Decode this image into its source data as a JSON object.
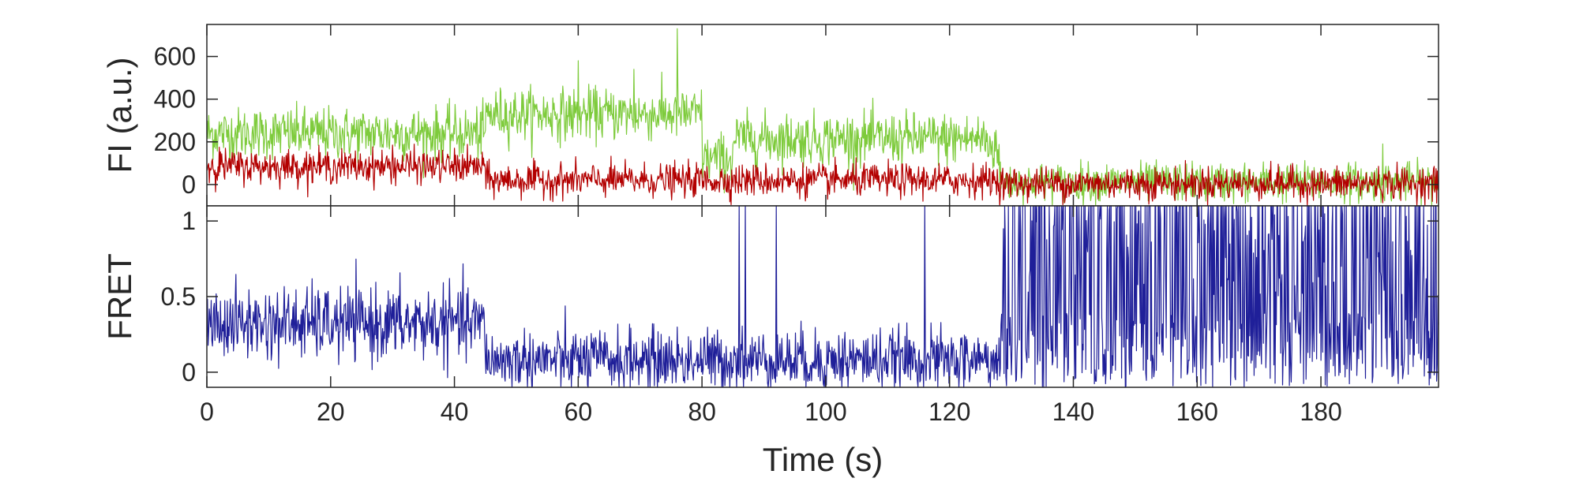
{
  "chart_data": [
    {
      "type": "line",
      "ylabel": "FI (a.u.)",
      "xlim": [
        0,
        199
      ],
      "ylim": [
        -100,
        750
      ],
      "yticks": [
        0,
        200,
        400,
        600
      ],
      "xticks_shown": false,
      "grid": false,
      "colors": {
        "donor": "#7ecb3c",
        "acceptor": "#b30000"
      },
      "series": [
        {
          "key": "donor",
          "segments": [
            {
              "x_range": [
                0,
                45
              ],
              "mean": 240
            },
            {
              "x_range": [
                45,
                80
              ],
              "mean": 330
            },
            {
              "x_range": [
                80,
                85
              ],
              "mean": 120
            },
            {
              "x_range": [
                85,
                126
              ],
              "mean": 215
            },
            {
              "x_range": [
                126,
                128
              ],
              "mean": 180
            },
            {
              "x_range": [
                128,
                199
              ],
              "mean": 10
            }
          ],
          "peaks": [
            {
              "x": 76,
              "y": 730
            },
            {
              "x": 60,
              "y": 580
            },
            {
              "x": 69,
              "y": 540
            },
            {
              "x": 190,
              "y": 190
            }
          ]
        },
        {
          "key": "acceptor",
          "segments": [
            {
              "x_range": [
                0,
                45
              ],
              "mean": 85
            },
            {
              "x_range": [
                45,
                128
              ],
              "mean": 20
            },
            {
              "x_range": [
                128,
                199
              ],
              "mean": 5
            }
          ],
          "peaks": [
            {
              "x": 2,
              "y": 175
            },
            {
              "x": 30,
              "y": 185
            }
          ]
        }
      ]
    },
    {
      "type": "line",
      "ylabel": "FRET",
      "xlabel": "Time (s)",
      "xlim": [
        0,
        199
      ],
      "ylim": [
        -0.1,
        1.1
      ],
      "yticks": [
        0,
        0.5,
        1
      ],
      "ytick_labels": [
        "0",
        "0.5",
        "1"
      ],
      "xticks": [
        0,
        20,
        40,
        60,
        80,
        100,
        120,
        140,
        160,
        180
      ],
      "grid": false,
      "color": "#1f1f99",
      "series": [
        {
          "key": "fret",
          "segments": [
            {
              "x_range": [
                0,
                45
              ],
              "mean": 0.32
            },
            {
              "x_range": [
                45,
                84
              ],
              "mean": 0.08
            },
            {
              "x_range": [
                84,
                128
              ],
              "mean": 0.08
            },
            {
              "x_range": [
                128,
                199
              ],
              "mean": 0.55,
              "switching": true
            }
          ],
          "spikes": [
            {
              "x": 86,
              "y": 1.1
            },
            {
              "x": 87,
              "y": 1.1
            },
            {
              "x": 92,
              "y": 1.1
            },
            {
              "x": 116,
              "y": 1.1
            }
          ]
        }
      ]
    }
  ]
}
